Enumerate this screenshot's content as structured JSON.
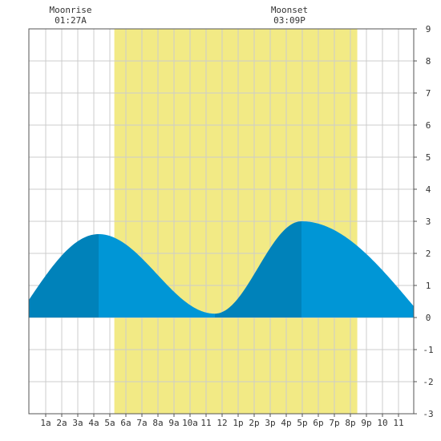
{
  "chart_data": {
    "type": "area",
    "x_unit": "hours after midnight",
    "xlim": [
      -0.05,
      23.95
    ],
    "ylim": [
      -3,
      9
    ],
    "y_ticks": [
      -3,
      -2,
      -1,
      0,
      1,
      2,
      3,
      4,
      5,
      6,
      7,
      8,
      9
    ],
    "x_ticks": [
      {
        "hour": 1,
        "label": "1a"
      },
      {
        "hour": 2,
        "label": "2a"
      },
      {
        "hour": 3,
        "label": "3a"
      },
      {
        "hour": 4,
        "label": "4a"
      },
      {
        "hour": 5,
        "label": "5a"
      },
      {
        "hour": 6,
        "label": "6a"
      },
      {
        "hour": 7,
        "label": "7a"
      },
      {
        "hour": 8,
        "label": "8a"
      },
      {
        "hour": 9,
        "label": "9a"
      },
      {
        "hour": 10,
        "label": "10a"
      },
      {
        "hour": 11,
        "label": "11"
      },
      {
        "hour": 12,
        "label": "12"
      },
      {
        "hour": 13,
        "label": "1p"
      },
      {
        "hour": 14,
        "label": "2p"
      },
      {
        "hour": 15,
        "label": "3p"
      },
      {
        "hour": 16,
        "label": "4p"
      },
      {
        "hour": 17,
        "label": "5p"
      },
      {
        "hour": 18,
        "label": "6p"
      },
      {
        "hour": 19,
        "label": "7p"
      },
      {
        "hour": 20,
        "label": "8p"
      },
      {
        "hour": 21,
        "label": "9p"
      },
      {
        "hour": 22,
        "label": "10"
      },
      {
        "hour": 23,
        "label": "11"
      }
    ],
    "grid": true,
    "daylight": {
      "start": 5.28,
      "end": 20.43
    },
    "moon_events": [
      {
        "label": "Moonrise",
        "time": "01:27A",
        "hour": 2.55
      },
      {
        "label": "Moonset",
        "time": "03:09P",
        "hour": 16.2
      }
    ],
    "tide_extremes": [
      {
        "hour": 4.3,
        "height": 2.6,
        "kind": "high"
      },
      {
        "hour": 11.55,
        "height": 0.12,
        "kind": "low"
      },
      {
        "hour": 16.95,
        "height": 3.0,
        "kind": "high"
      }
    ],
    "tide_start": {
      "hour": -0.05,
      "height": 0.55
    },
    "tide_end": {
      "hour": 23.95,
      "height": 0.35
    },
    "fill_light": "#0096d6",
    "fill_dark": "#0082ba",
    "daylight_color": "#f2ea85",
    "grid_color": "#cccccc"
  }
}
